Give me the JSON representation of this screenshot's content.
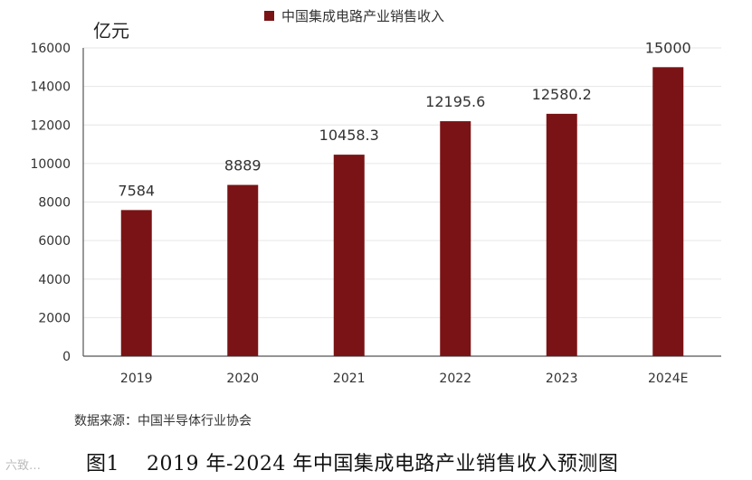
{
  "chart_data": {
    "type": "bar",
    "title": "",
    "unit_label": "亿元",
    "categories": [
      "2019",
      "2020",
      "2021",
      "2022",
      "2023",
      "2024E"
    ],
    "series": [
      {
        "name": "中国集成电路产业销售收入",
        "values": [
          7584,
          8889,
          10458.3,
          12195.6,
          12580.2,
          15000
        ],
        "data_labels": [
          "7584",
          "8889",
          "10458.3",
          "12195.6",
          "12580.2",
          "15000"
        ],
        "color": "#7a1315"
      }
    ],
    "ylim": [
      0,
      16000
    ],
    "yticks": [
      "0",
      "2000",
      "4000",
      "6000",
      "8000",
      "10000",
      "12000",
      "14000",
      "16000"
    ],
    "grid": true,
    "legend_position": "top-center"
  },
  "source_text": "数据来源：中国半导体行业协会",
  "caption_text": "图1    2019 年-2024 年中国集成电路产业销售收入预测图",
  "watermark_text": "六致…"
}
